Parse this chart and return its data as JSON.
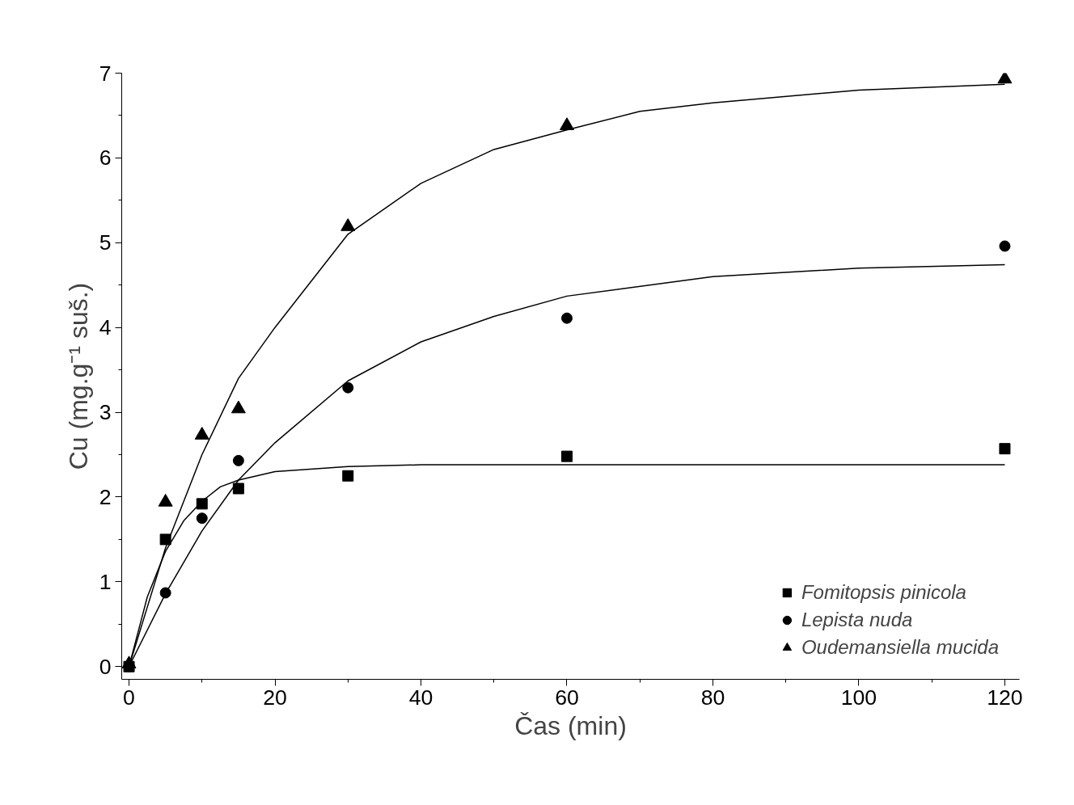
{
  "chart_data": {
    "type": "scatter",
    "xlabel": "Čas (min)",
    "ylabel": "Cu (mg.g⁻¹ suš.)",
    "x": [
      0,
      5,
      10,
      15,
      30,
      60,
      120
    ],
    "xlim": [
      -1,
      122
    ],
    "xticks": [
      0,
      20,
      40,
      60,
      80,
      100,
      120
    ],
    "ylim": [
      -0.15,
      7
    ],
    "yticks": [
      0,
      1,
      2,
      3,
      4,
      5,
      6,
      7
    ],
    "grid": false,
    "legend": "bottom right",
    "series": [
      {
        "name": "Fomitopsis pinicola",
        "color": "#000000",
        "marker": "square",
        "values": [
          null,
          1.5,
          1.92,
          2.1,
          2.25,
          2.48,
          2.57
        ]
      },
      {
        "name": "Lepista nuda",
        "color": "#000000",
        "marker": "circle",
        "values": [
          null,
          0.87,
          1.75,
          2.43,
          3.29,
          4.11,
          4.96
        ]
      },
      {
        "name": "Oudemansiella mucida",
        "color": "#000000",
        "marker": "triangle",
        "values": [
          0.03,
          1.94,
          2.73,
          3.04,
          5.19,
          6.38,
          6.93
        ]
      },
      {
        "type": "line",
        "color": "#000000",
        "x": [
          0,
          2.5,
          5,
          7.5,
          10,
          12.5,
          15,
          20,
          30,
          40,
          60,
          80,
          100,
          120
        ],
        "values": [
          0,
          0.82,
          1.36,
          1.72,
          1.95,
          2.12,
          2.2,
          2.3,
          2.36,
          2.38,
          2.38,
          2.38,
          2.38,
          2.38
        ]
      },
      {
        "type": "line",
        "color": "#000000",
        "x": [
          0,
          5,
          10,
          15,
          20,
          30,
          40,
          50,
          60,
          80,
          100,
          120
        ],
        "values": [
          0,
          0.86,
          1.6,
          2.2,
          2.64,
          3.37,
          3.83,
          4.13,
          4.37,
          4.6,
          4.7,
          4.74
        ]
      },
      {
        "type": "line",
        "color": "#000000",
        "x": [
          0,
          5,
          10,
          15,
          20,
          30,
          40,
          50,
          60,
          70,
          80,
          100,
          120
        ],
        "values": [
          0,
          1.4,
          2.5,
          3.4,
          4.0,
          5.1,
          5.7,
          6.1,
          6.33,
          6.55,
          6.65,
          6.8,
          6.87
        ]
      }
    ]
  }
}
